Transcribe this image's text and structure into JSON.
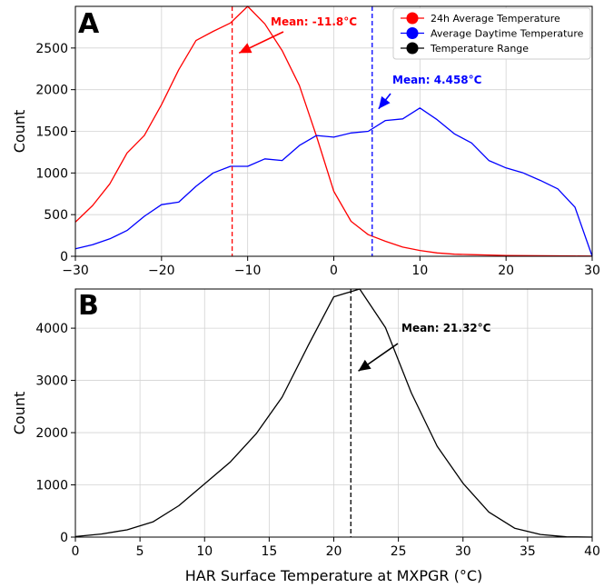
{
  "chart_data": [
    {
      "panel": "A",
      "type": "line",
      "xlabel": "",
      "ylabel": "Count",
      "xlim": [
        -30,
        30
      ],
      "ylim": [
        0,
        3000
      ],
      "xticks": [
        -30,
        -20,
        -10,
        0,
        10,
        20,
        30
      ],
      "yticks": [
        0,
        500,
        1000,
        1500,
        2000,
        2500
      ],
      "grid": true,
      "legend_position": "top-right",
      "series": [
        {
          "name": "24h Average Temperature",
          "color": "#ff0000",
          "x": [
            -30,
            -28,
            -26,
            -24,
            -22,
            -20,
            -18,
            -16,
            -14,
            -12,
            -10,
            -8,
            -6,
            -4,
            -2,
            0,
            2,
            4,
            6,
            8,
            10,
            12,
            14,
            16,
            18,
            20,
            22,
            24,
            26,
            28,
            30
          ],
          "y": [
            410,
            610,
            870,
            1240,
            1450,
            1820,
            2240,
            2590,
            2700,
            2800,
            3000,
            2790,
            2470,
            2050,
            1440,
            780,
            420,
            260,
            180,
            110,
            70,
            40,
            25,
            20,
            15,
            10,
            8,
            6,
            5,
            3,
            2
          ]
        },
        {
          "name": "Average Daytime Temperature",
          "color": "#0000ff",
          "x": [
            -30,
            -28,
            -26,
            -24,
            -22,
            -20,
            -18,
            -16,
            -14,
            -12,
            -10,
            -8,
            -6,
            -4,
            -2,
            0,
            2,
            4,
            6,
            8,
            10,
            12,
            14,
            16,
            18,
            20,
            22,
            24,
            26,
            28,
            30
          ],
          "y": [
            90,
            140,
            210,
            310,
            480,
            620,
            650,
            840,
            1000,
            1080,
            1080,
            1170,
            1150,
            1330,
            1450,
            1430,
            1480,
            1500,
            1630,
            1650,
            1780,
            1640,
            1470,
            1360,
            1150,
            1060,
            1000,
            910,
            810,
            590,
            0
          ]
        },
        {
          "name": "Temperature Range",
          "color": "#000000",
          "x": [],
          "y": []
        }
      ],
      "mean_lines": [
        {
          "x": -11.8,
          "color": "#ff0000",
          "label": "Mean: -11.8$^{\\circ}$C",
          "text": "Mean: -11.8",
          "unit": "°C",
          "arrow_tip": [
            -11,
            2440
          ]
        },
        {
          "x": 4.458,
          "color": "#0000ff",
          "label": "Mean: 4.458$^{\\circ}$C",
          "text": "Mean: 4.458",
          "unit": "°C",
          "arrow_tip": [
            5.2,
            1770
          ]
        }
      ]
    },
    {
      "panel": "B",
      "type": "line",
      "xlabel": "HAR Surface Temperature at MXPGR (°C)",
      "ylabel": "Count",
      "xlim": [
        0,
        40
      ],
      "ylim": [
        0,
        4750
      ],
      "xticks": [
        0,
        5,
        10,
        15,
        20,
        25,
        30,
        35,
        40
      ],
      "yticks": [
        0,
        1000,
        2000,
        3000,
        4000
      ],
      "grid": true,
      "series": [
        {
          "name": "Temperature Range",
          "color": "#000000",
          "x": [
            0,
            2,
            4,
            6,
            8,
            10,
            12,
            14,
            16,
            18,
            20,
            22,
            24,
            26,
            28,
            30,
            32,
            34,
            36,
            38,
            40
          ],
          "y": [
            10,
            60,
            140,
            290,
            600,
            1020,
            1440,
            1980,
            2680,
            3660,
            4600,
            4750,
            4010,
            2760,
            1740,
            1030,
            480,
            170,
            50,
            5,
            0
          ]
        }
      ],
      "mean_lines": [
        {
          "x": 21.32,
          "color": "#000000",
          "text": "Mean: 21.32",
          "unit": "°C",
          "arrow_tip": [
            21.9,
            3180
          ]
        }
      ]
    }
  ]
}
